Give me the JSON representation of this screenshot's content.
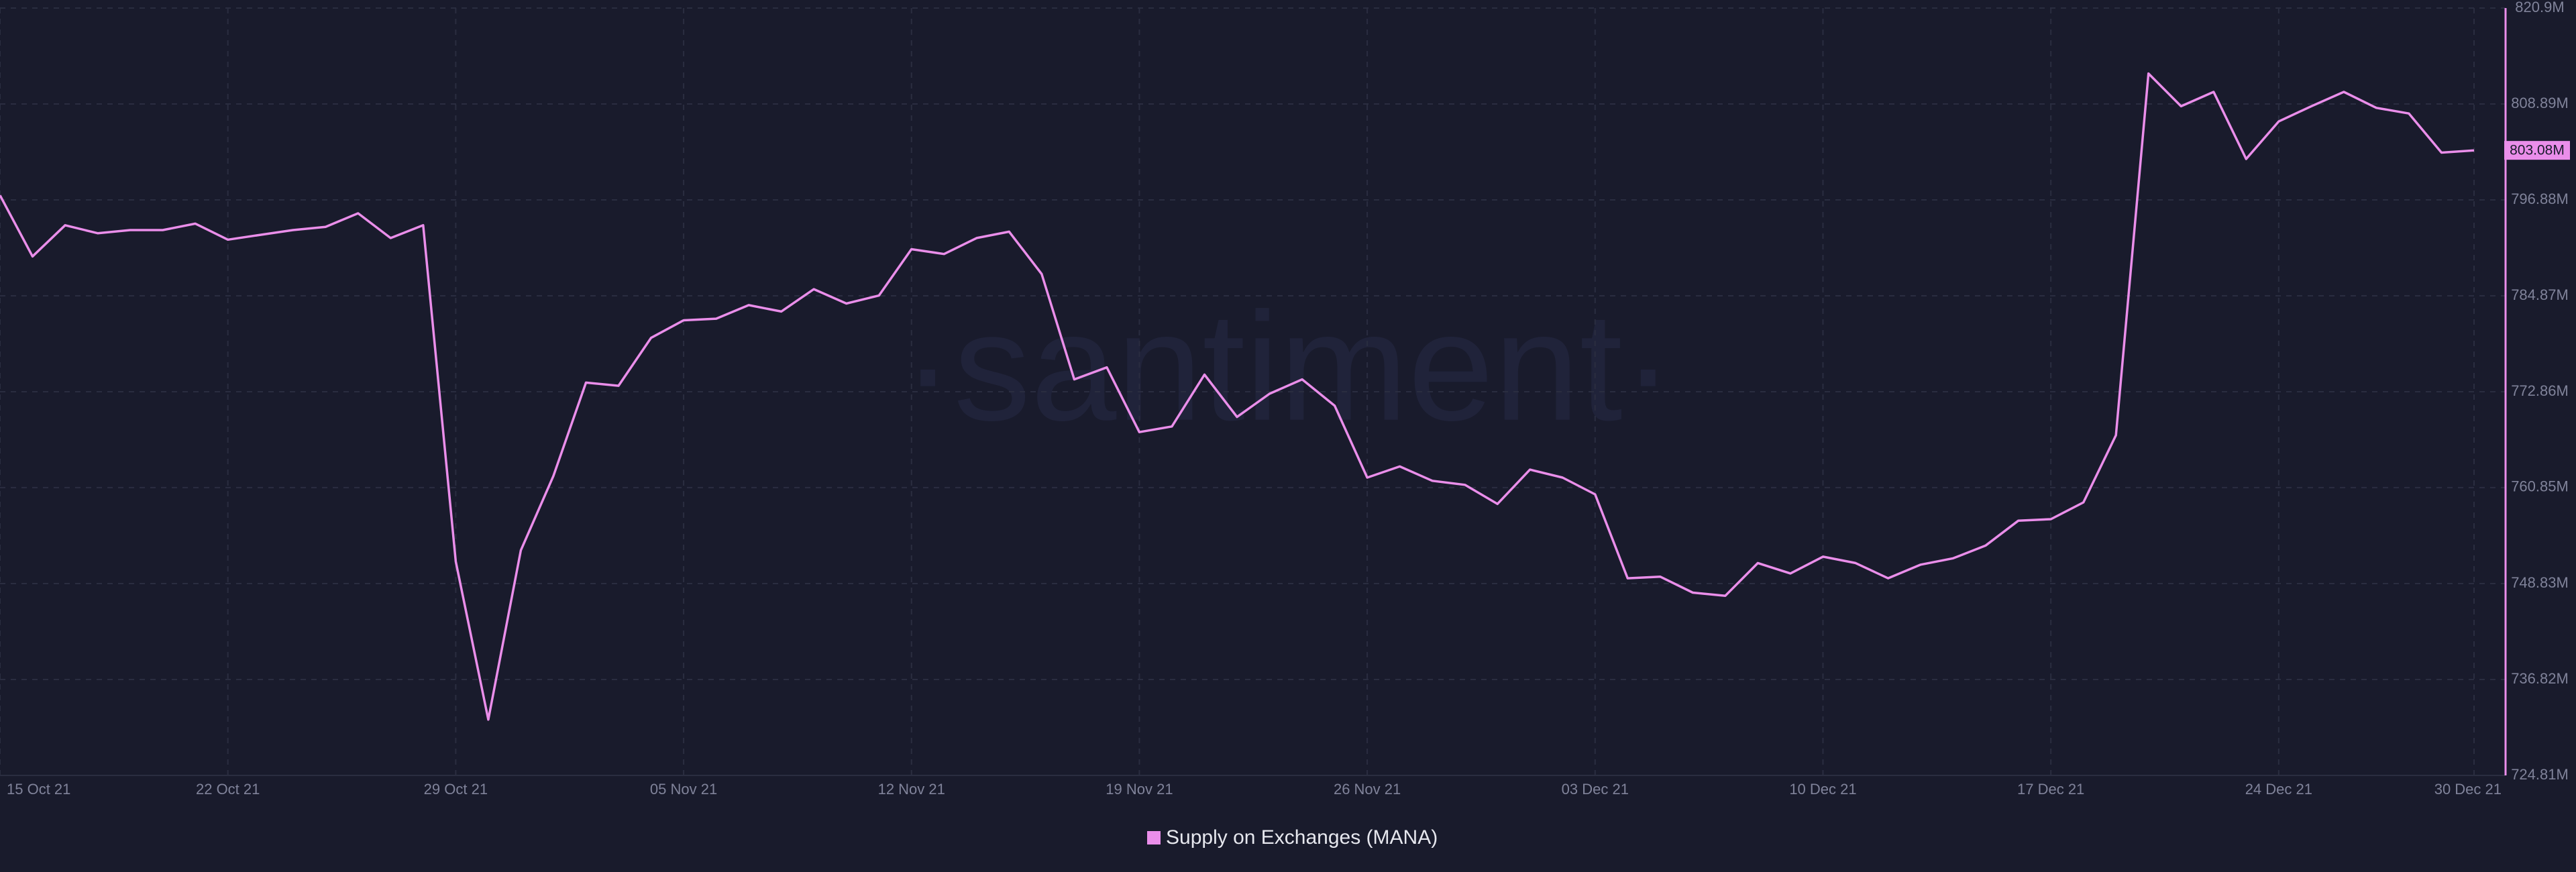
{
  "chart_data": {
    "type": "line",
    "watermark": "·santiment·",
    "x": [
      "2021-10-15",
      "2021-10-16",
      "2021-10-17",
      "2021-10-18",
      "2021-10-19",
      "2021-10-20",
      "2021-10-21",
      "2021-10-22",
      "2021-10-23",
      "2021-10-24",
      "2021-10-25",
      "2021-10-26",
      "2021-10-27",
      "2021-10-28",
      "2021-10-29",
      "2021-10-30",
      "2021-10-31",
      "2021-11-01",
      "2021-11-02",
      "2021-11-03",
      "2021-11-04",
      "2021-11-05",
      "2021-11-06",
      "2021-11-07",
      "2021-11-08",
      "2021-11-09",
      "2021-11-10",
      "2021-11-11",
      "2021-11-12",
      "2021-11-13",
      "2021-11-14",
      "2021-11-15",
      "2021-11-16",
      "2021-11-17",
      "2021-11-18",
      "2021-11-19",
      "2021-11-20",
      "2021-11-21",
      "2021-11-22",
      "2021-11-23",
      "2021-11-24",
      "2021-11-25",
      "2021-11-26",
      "2021-11-27",
      "2021-11-28",
      "2021-11-29",
      "2021-11-30",
      "2021-12-01",
      "2021-12-02",
      "2021-12-03",
      "2021-12-04",
      "2021-12-05",
      "2021-12-06",
      "2021-12-07",
      "2021-12-08",
      "2021-12-09",
      "2021-12-10",
      "2021-12-11",
      "2021-12-12",
      "2021-12-13",
      "2021-12-14",
      "2021-12-15",
      "2021-12-16",
      "2021-12-17",
      "2021-12-18",
      "2021-12-19",
      "2021-12-20",
      "2021-12-21",
      "2021-12-22",
      "2021-12-23",
      "2021-12-24",
      "2021-12-25",
      "2021-12-26",
      "2021-12-27",
      "2021-12-28",
      "2021-12-29",
      "2021-12-30"
    ],
    "series": [
      {
        "name": "Supply on Exchanges (MANA)",
        "color": "#ea8eea",
        "values": [
          797.45,
          789.8,
          793.7,
          792.7,
          793.1,
          793.1,
          793.9,
          791.9,
          792.5,
          793.1,
          793.5,
          795.2,
          792.1,
          793.7,
          751.6,
          731.8,
          753.0,
          762.3,
          774.0,
          773.6,
          779.6,
          781.8,
          782.0,
          783.7,
          782.9,
          785.7,
          783.9,
          784.9,
          790.7,
          790.1,
          792.1,
          792.9,
          787.6,
          774.4,
          775.9,
          767.8,
          768.5,
          775.0,
          769.7,
          772.6,
          774.4,
          771.1,
          762.1,
          763.5,
          761.7,
          761.2,
          758.8,
          763.1,
          762.1,
          760.0,
          749.5,
          749.7,
          747.7,
          747.3,
          751.4,
          750.1,
          752.2,
          751.4,
          749.5,
          751.2,
          752.0,
          753.6,
          756.7,
          756.9,
          759.0,
          767.4,
          812.7,
          808.6,
          810.4,
          802.0,
          806.7,
          808.6,
          810.4,
          808.4,
          807.7,
          802.8,
          803.08
        ],
        "value_labels": [
          null,
          null,
          null,
          null,
          null,
          null,
          null,
          null,
          null,
          null,
          null,
          null,
          null,
          null,
          null,
          null,
          null,
          null,
          null,
          null,
          null,
          null,
          null,
          null,
          null,
          null,
          null,
          null,
          null,
          null,
          null,
          null,
          null,
          null,
          null,
          null,
          null,
          null,
          null,
          null,
          null,
          null,
          null,
          null,
          null,
          null,
          null,
          null,
          null,
          null,
          null,
          null,
          null,
          null,
          null,
          null,
          null,
          null,
          null,
          null,
          null,
          null,
          null,
          null,
          null,
          null,
          null,
          null,
          null,
          null,
          null,
          null,
          null,
          null,
          null,
          null,
          "803.08M"
        ]
      }
    ],
    "xlim": [
      "2021-10-15",
      "2021-12-30"
    ],
    "xticks": [
      {
        "value": "2021-10-15",
        "label": "15 Oct 21"
      },
      {
        "value": "2021-10-22",
        "label": "22 Oct 21"
      },
      {
        "value": "2021-10-29",
        "label": "29 Oct 21"
      },
      {
        "value": "2021-11-05",
        "label": "05 Nov 21"
      },
      {
        "value": "2021-11-12",
        "label": "12 Nov 21"
      },
      {
        "value": "2021-11-19",
        "label": "19 Nov 21"
      },
      {
        "value": "2021-11-26",
        "label": "26 Nov 21"
      },
      {
        "value": "2021-12-03",
        "label": "03 Dec 21"
      },
      {
        "value": "2021-12-10",
        "label": "10 Dec 21"
      },
      {
        "value": "2021-12-17",
        "label": "17 Dec 21"
      },
      {
        "value": "2021-12-24",
        "label": "24 Dec 21"
      },
      {
        "value": "2021-12-30",
        "label": "30 Dec 21"
      }
    ],
    "ylim": [
      724.81,
      820.9
    ],
    "yticks": [
      {
        "value": 820.9,
        "label": "820.9M"
      },
      {
        "value": 808.89,
        "label": "808.89M"
      },
      {
        "value": 796.88,
        "label": "796.88M"
      },
      {
        "value": 784.87,
        "label": "784.87M"
      },
      {
        "value": 772.86,
        "label": "772.86M"
      },
      {
        "value": 760.85,
        "label": "760.85M"
      },
      {
        "value": 748.83,
        "label": "748.83M"
      },
      {
        "value": 736.82,
        "label": "736.82M"
      },
      {
        "value": 724.81,
        "label": "724.81M"
      }
    ],
    "grid": true,
    "legend": "bottom"
  }
}
